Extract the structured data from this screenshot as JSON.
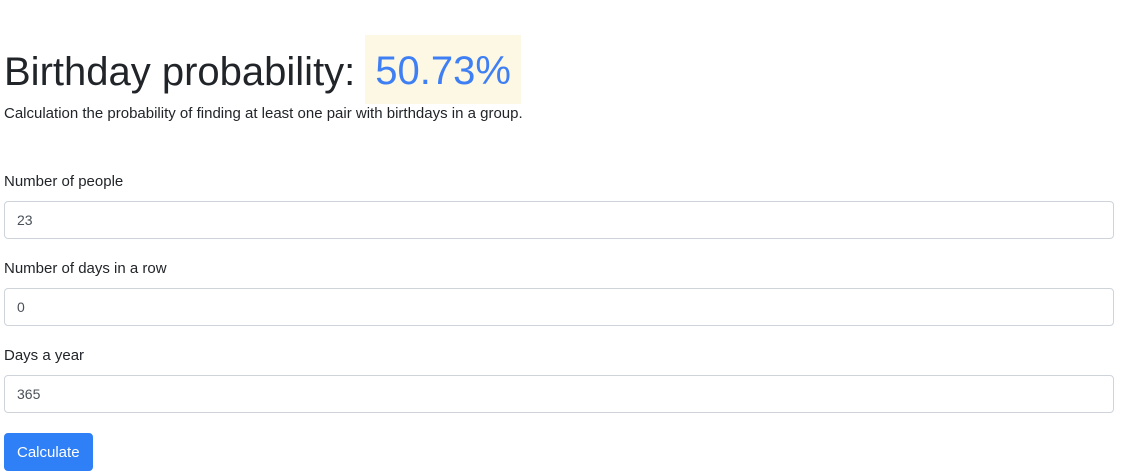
{
  "header": {
    "title": "Birthday probability:",
    "result": "50.73%",
    "subtitle": "Calculation the probability of finding at least one pair with birthdays in a group."
  },
  "form": {
    "people": {
      "label": "Number of people",
      "value": "23"
    },
    "days_in_row": {
      "label": "Number of days in a row",
      "value": "0"
    },
    "days_year": {
      "label": "Days a year",
      "value": "365"
    },
    "button_label": "Calculate"
  },
  "colors": {
    "accent": "#2f7ff6",
    "result_text": "#3f7ff4",
    "result_bg": "#fcf8e3"
  }
}
